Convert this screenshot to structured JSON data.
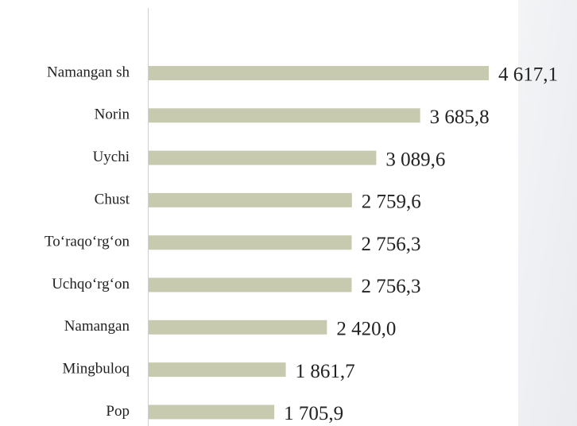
{
  "chart_data": {
    "type": "bar",
    "orientation": "horizontal",
    "categories": [
      "Namangan sh",
      "Norin",
      "Uychi",
      "Chust",
      "To‘raqo‘rg‘on",
      "Uchqo‘rg‘on",
      "Namangan",
      "Mingbuloq",
      "Pop"
    ],
    "values": [
      4617.1,
      3685.8,
      3089.6,
      2759.6,
      2756.3,
      2756.3,
      2420.0,
      1861.7,
      1705.9
    ],
    "value_labels": [
      "4 617,1",
      "3 685,8",
      "3 089,6",
      "2 759,6",
      "2 756,3",
      "2 756,3",
      "2 420,0",
      "1 861,7",
      "1 705,9"
    ],
    "color": "#c8cab0"
  }
}
